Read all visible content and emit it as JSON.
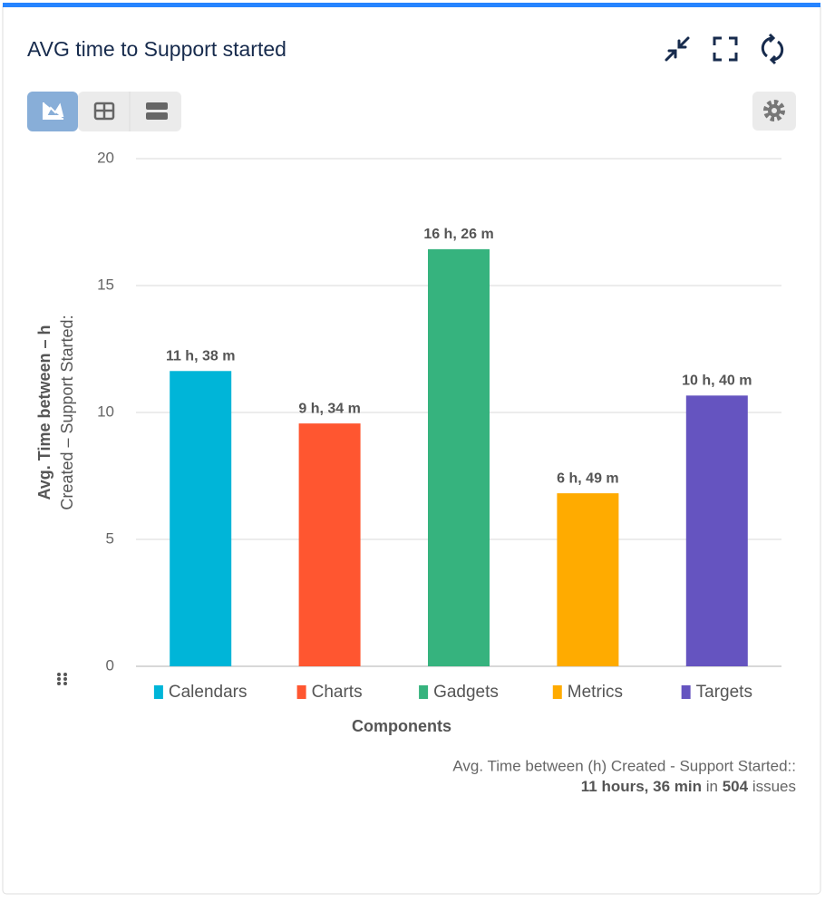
{
  "header": {
    "title": "AVG time to Support started"
  },
  "chart_data": {
    "type": "bar",
    "categories": [
      "Calendars",
      "Charts",
      "Gadgets",
      "Metrics",
      "Targets"
    ],
    "values": [
      11.633,
      9.567,
      16.433,
      6.817,
      10.667
    ],
    "value_labels": [
      "11 h, 38 m",
      "9 h, 34 m",
      "16 h, 26 m",
      "6 h, 49 m",
      "10 h, 40 m"
    ],
    "colors": [
      "#00b5d8",
      "#ff5630",
      "#36b37e",
      "#ffab00",
      "#6554c0"
    ],
    "ylim": [
      0,
      20
    ],
    "yticks": [
      0,
      5,
      10,
      15,
      20
    ],
    "grid": true,
    "y_label": [
      "Avg. Time between – h",
      "Created – Support Started:"
    ],
    "x_label": "Components",
    "legend": "bottom"
  },
  "summary": {
    "line1": "Avg. Time between (h) Created - Support Started::",
    "average": "11 hours, 36 min",
    "joiner": "in",
    "count": "504",
    "unit": "issues"
  }
}
